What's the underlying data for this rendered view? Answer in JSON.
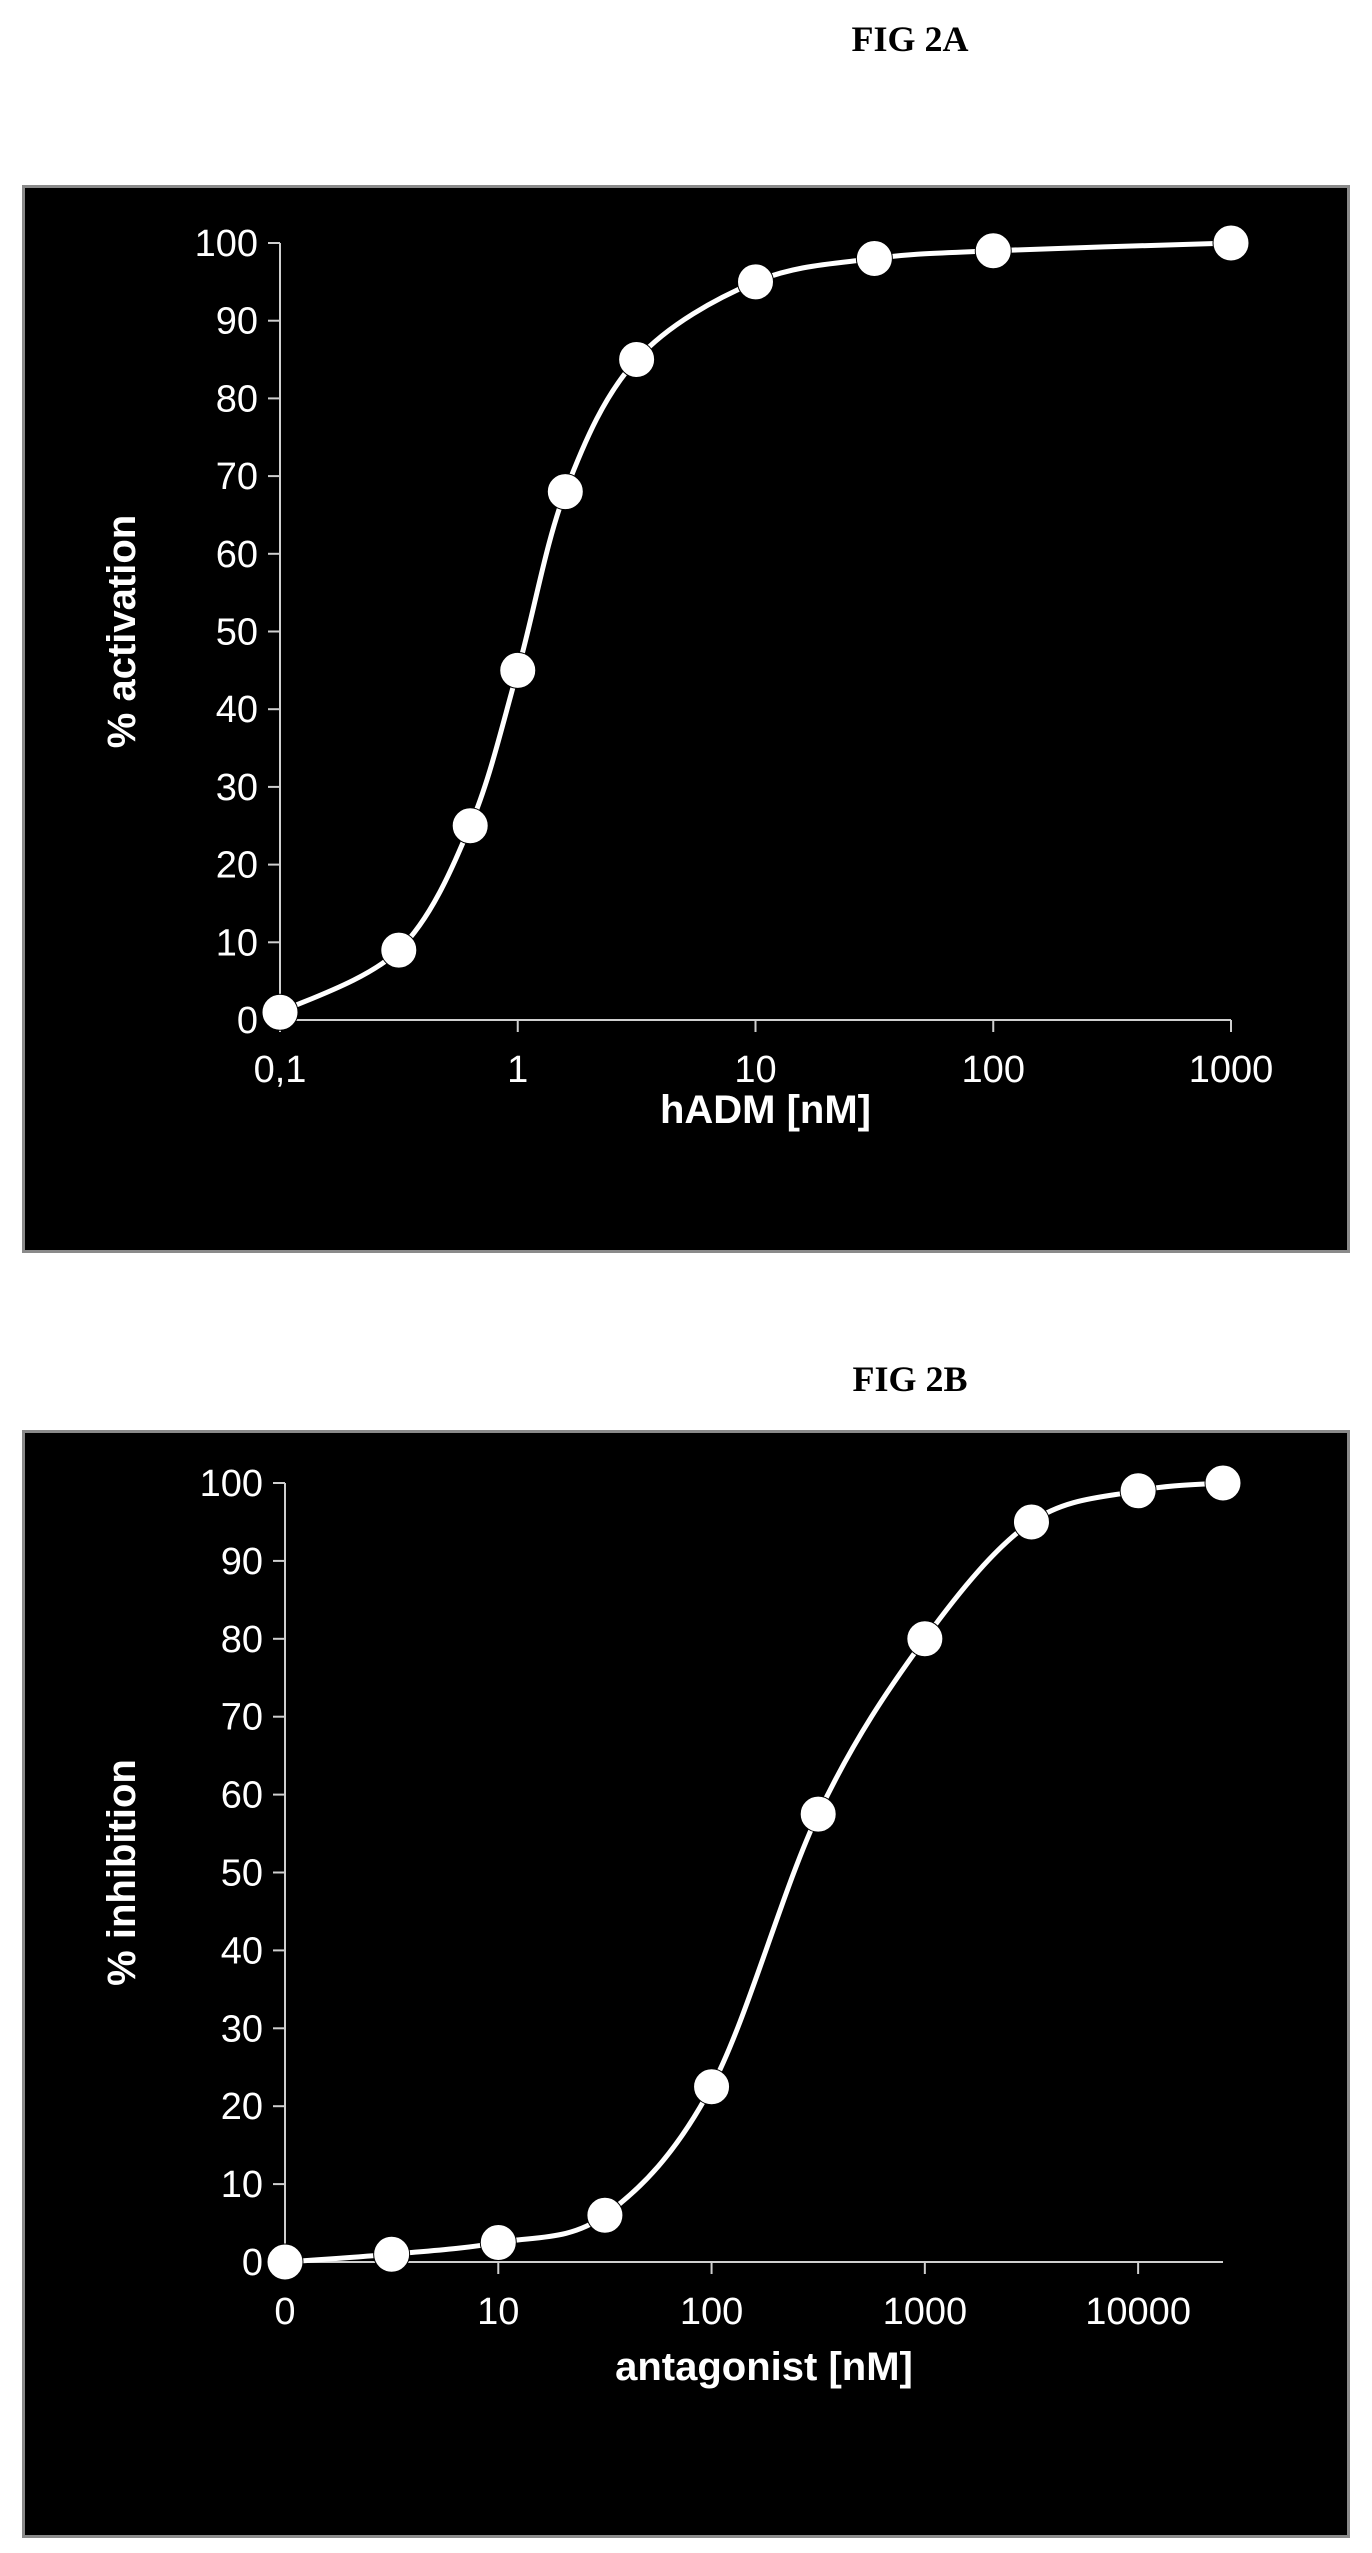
{
  "figures": [
    {
      "label": "FIG 2A"
    },
    {
      "label": "FIG 2B"
    }
  ],
  "chart_data": [
    {
      "type": "line",
      "xscale": "log",
      "xlabel": "hADM [nM]",
      "ylabel": "% activation",
      "ylim": [
        0,
        100
      ],
      "yticks": [
        0,
        10,
        20,
        30,
        40,
        50,
        60,
        70,
        80,
        90,
        100
      ],
      "xticks": [
        0.1,
        1,
        10,
        100,
        1000
      ],
      "xtick_labels": [
        "0,1",
        "1",
        "10",
        "100",
        "1000"
      ],
      "grid": false,
      "colors": {
        "background": "#000000",
        "line": "#ffffff",
        "marker": "#ffffff"
      },
      "series": [
        {
          "x": [
            0.1,
            0.316,
            0.631,
            1,
            1.585,
            3.162,
            10,
            31.62,
            100,
            1000
          ],
          "y": [
            1,
            9,
            25,
            45,
            68,
            85,
            95,
            98,
            99,
            100
          ]
        }
      ]
    },
    {
      "type": "line",
      "xscale": "log",
      "xlabel": "antagonist [nM]",
      "ylabel": "% inhibition",
      "ylim": [
        0,
        100
      ],
      "yticks": [
        0,
        10,
        20,
        30,
        40,
        50,
        60,
        70,
        80,
        90,
        100
      ],
      "xticks": [
        1,
        10,
        100,
        1000,
        10000
      ],
      "xtick_labels": [
        "0",
        "10",
        "100",
        "1000",
        "10000"
      ],
      "grid": false,
      "colors": {
        "background": "#000000",
        "line": "#ffffff",
        "marker": "#ffffff"
      },
      "series": [
        {
          "x": [
            1,
            3.162,
            10,
            31.62,
            100,
            316.2,
            1000,
            3162,
            10000,
            25000
          ],
          "y": [
            0,
            1,
            2.5,
            6,
            22.5,
            57.5,
            80,
            95,
            99,
            100
          ]
        }
      ]
    }
  ]
}
